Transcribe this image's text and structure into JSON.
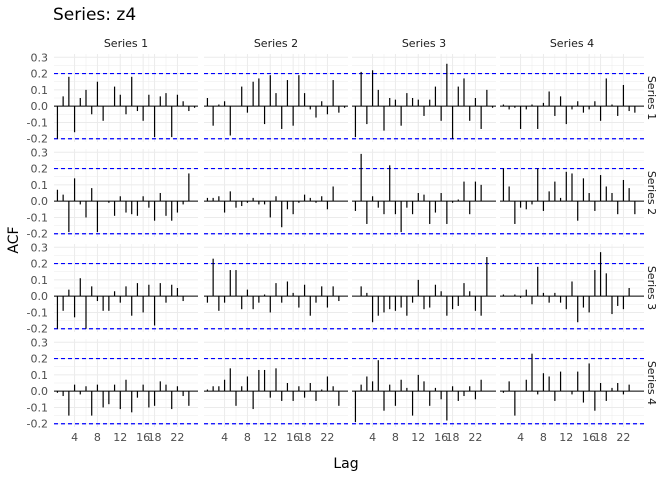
{
  "chart_data": {
    "type": "bar",
    "title": "Series: z4",
    "xlabel": "Lag",
    "ylabel": "ACF",
    "column_strips": [
      "Series 1",
      "Series 2",
      "Series 3",
      "Series 4"
    ],
    "row_strips": [
      "Series 1",
      "Series 2",
      "Series 3",
      "Series 4"
    ],
    "x_ticks": [
      "4",
      "8",
      "12",
      "16",
      "18",
      "22"
    ],
    "x_tick_values": [
      4,
      8,
      12,
      16,
      18,
      22
    ],
    "y_ticks": [
      "-0.2",
      "-0.1",
      "0.0",
      "0.1",
      "0.2",
      "0.3"
    ],
    "y_tick_values": [
      -0.2,
      -0.1,
      0.0,
      0.1,
      0.2,
      0.3
    ],
    "ylim": [
      -0.22,
      0.32
    ],
    "xlim": [
      0.4,
      25.6
    ],
    "lags": [
      1,
      2,
      3,
      4,
      5,
      6,
      7,
      8,
      9,
      10,
      11,
      12,
      13,
      14,
      15,
      16,
      17,
      18,
      19,
      20,
      21,
      22,
      23,
      24,
      25
    ],
    "confidence_bound": 0.2,
    "grid": true,
    "colors": {
      "bar": "#000000",
      "confidence": "#0000ff",
      "grid": "#ebebeb"
    },
    "panels": [
      {
        "row": "Series 1",
        "col": "Series 1",
        "acf": [
          -0.2,
          0.06,
          0.18,
          -0.16,
          0.05,
          0.1,
          -0.05,
          0.15,
          -0.09,
          0.0,
          0.12,
          0.07,
          -0.05,
          0.18,
          -0.03,
          -0.09,
          0.07,
          -0.19,
          0.06,
          0.08,
          -0.19,
          0.07,
          0.03,
          -0.03,
          -0.01
        ]
      },
      {
        "row": "Series 1",
        "col": "Series 2",
        "acf": [
          0.05,
          -0.12,
          0.01,
          0.03,
          -0.18,
          0.0,
          0.12,
          -0.04,
          0.15,
          0.17,
          -0.11,
          0.19,
          0.08,
          -0.14,
          0.16,
          -0.12,
          0.19,
          0.08,
          -0.02,
          -0.07,
          0.03,
          -0.05,
          0.16,
          -0.04,
          -0.01
        ]
      },
      {
        "row": "Series 1",
        "col": "Series 3",
        "acf": [
          -0.19,
          0.21,
          -0.11,
          0.22,
          0.1,
          -0.15,
          0.05,
          0.04,
          -0.12,
          0.08,
          0.05,
          0.04,
          -0.06,
          0.04,
          0.12,
          -0.09,
          0.26,
          -0.2,
          0.12,
          0.17,
          -0.09,
          0.05,
          -0.14,
          0.1,
          -0.01
        ]
      },
      {
        "row": "Series 1",
        "col": "Series 4",
        "acf": [
          0.01,
          -0.02,
          -0.01,
          -0.14,
          -0.02,
          0.01,
          -0.14,
          0.02,
          0.09,
          -0.06,
          0.06,
          -0.11,
          -0.02,
          0.03,
          -0.04,
          -0.02,
          0.03,
          -0.09,
          0.17,
          0.01,
          -0.06,
          0.13,
          -0.03,
          -0.04,
          0.0
        ]
      },
      {
        "row": "Series 2",
        "col": "Series 1",
        "acf": [
          0.07,
          0.04,
          -0.19,
          0.14,
          -0.02,
          -0.1,
          0.08,
          -0.19,
          0.0,
          -0.01,
          -0.09,
          0.03,
          -0.07,
          -0.08,
          -0.09,
          0.03,
          -0.04,
          -0.12,
          0.05,
          -0.09,
          -0.12,
          -0.07,
          -0.02,
          0.17,
          0.0
        ]
      },
      {
        "row": "Series 2",
        "col": "Series 2",
        "acf": [
          0.02,
          0.02,
          0.03,
          -0.07,
          0.06,
          -0.04,
          -0.03,
          -0.01,
          0.02,
          -0.02,
          -0.02,
          -0.1,
          0.03,
          -0.16,
          -0.05,
          -0.08,
          -0.01,
          0.04,
          0.02,
          -0.01,
          0.03,
          -0.05,
          0.09,
          0.0,
          0.0
        ]
      },
      {
        "row": "Series 2",
        "col": "Series 3",
        "acf": [
          -0.06,
          0.29,
          -0.14,
          0.03,
          -0.04,
          -0.08,
          0.22,
          -0.08,
          -0.19,
          -0.04,
          -0.08,
          0.05,
          0.04,
          -0.14,
          -0.07,
          0.05,
          -0.14,
          -0.01,
          0.01,
          0.12,
          -0.08,
          0.12,
          0.1,
          0.0,
          0.0
        ]
      },
      {
        "row": "Series 2",
        "col": "Series 4",
        "acf": [
          0.2,
          0.09,
          -0.14,
          -0.04,
          -0.05,
          -0.02,
          0.2,
          -0.06,
          0.06,
          0.12,
          0.02,
          0.18,
          0.17,
          -0.12,
          0.14,
          0.05,
          -0.06,
          0.16,
          0.09,
          0.05,
          -0.08,
          0.13,
          0.08,
          -0.08,
          0.0
        ]
      },
      {
        "row": "Series 3",
        "col": "Series 1",
        "acf": [
          -0.2,
          -0.09,
          0.04,
          -0.13,
          0.11,
          -0.2,
          0.06,
          -0.03,
          -0.09,
          -0.09,
          0.03,
          -0.04,
          0.06,
          -0.12,
          0.08,
          -0.1,
          0.07,
          -0.18,
          0.08,
          -0.04,
          0.07,
          0.05,
          -0.03,
          0.0,
          0.0
        ]
      },
      {
        "row": "Series 3",
        "col": "Series 2",
        "acf": [
          -0.04,
          0.23,
          -0.09,
          -0.04,
          0.16,
          0.16,
          -0.08,
          0.04,
          -0.08,
          -0.04,
          0.01,
          -0.1,
          0.08,
          -0.04,
          0.09,
          0.02,
          -0.07,
          0.07,
          -0.12,
          -0.04,
          0.06,
          -0.07,
          0.06,
          -0.03,
          0.0
        ]
      },
      {
        "row": "Series 3",
        "col": "Series 3",
        "acf": [
          0.0,
          0.06,
          0.02,
          -0.16,
          -0.12,
          -0.1,
          -0.08,
          -0.09,
          -0.07,
          -0.12,
          -0.04,
          0.1,
          -0.08,
          -0.07,
          0.07,
          0.03,
          -0.12,
          -0.08,
          -0.06,
          0.08,
          0.03,
          -0.09,
          -0.12,
          0.24,
          0.0
        ]
      },
      {
        "row": "Series 3",
        "col": "Series 4",
        "acf": [
          0.01,
          0.0,
          0.01,
          -0.01,
          0.04,
          -0.05,
          0.18,
          0.02,
          -0.04,
          0.02,
          -0.04,
          -0.08,
          0.09,
          -0.16,
          -0.07,
          -0.1,
          0.16,
          0.27,
          0.14,
          -0.11,
          -0.06,
          -0.08,
          0.05,
          0.0,
          0.0
        ]
      },
      {
        "row": "Series 4",
        "col": "Series 1",
        "acf": [
          -0.01,
          -0.03,
          -0.15,
          0.04,
          -0.02,
          0.03,
          -0.15,
          0.04,
          -0.1,
          -0.08,
          0.04,
          -0.11,
          0.07,
          -0.13,
          -0.04,
          0.04,
          -0.1,
          -0.09,
          0.06,
          0.04,
          -0.11,
          0.03,
          -0.03,
          -0.09,
          0.0
        ]
      },
      {
        "row": "Series 4",
        "col": "Series 2",
        "acf": [
          0.01,
          0.03,
          0.03,
          0.07,
          0.14,
          -0.09,
          0.03,
          0.09,
          -0.11,
          0.13,
          0.13,
          -0.04,
          0.14,
          -0.06,
          0.05,
          -0.06,
          0.03,
          -0.04,
          0.05,
          -0.06,
          0.01,
          0.09,
          0.03,
          -0.09,
          0.0
        ]
      },
      {
        "row": "Series 4",
        "col": "Series 3",
        "acf": [
          -0.19,
          0.04,
          0.09,
          0.06,
          0.19,
          -0.12,
          0.04,
          -0.09,
          0.07,
          0.02,
          -0.15,
          0.1,
          0.06,
          -0.09,
          0.02,
          -0.05,
          -0.18,
          0.03,
          -0.06,
          -0.03,
          0.03,
          -0.05,
          0.07,
          0.0,
          0.0
        ]
      },
      {
        "row": "Series 4",
        "col": "Series 4",
        "acf": [
          -0.01,
          0.06,
          -0.15,
          0.0,
          0.07,
          0.23,
          -0.02,
          0.11,
          0.09,
          -0.06,
          0.12,
          0.0,
          -0.02,
          0.12,
          -0.07,
          0.17,
          -0.12,
          0.05,
          -0.06,
          0.02,
          0.05,
          -0.02,
          0.04,
          0.0,
          0.0
        ]
      }
    ]
  }
}
